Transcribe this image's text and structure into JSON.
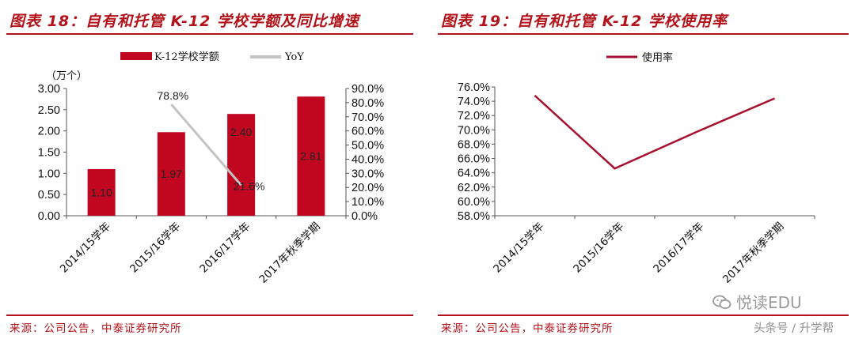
{
  "left": {
    "title": "图表 18：自有和托管 K-12 学校学额及同比增速",
    "source": "来源：公司公告，中泰证券研究所",
    "unit_label": "（万个）",
    "legend": {
      "bar": "K-12学校学额",
      "line": "YoY"
    }
  },
  "right": {
    "title": "图表 19：自有和托管 K-12 学校使用率",
    "source": "来源：公司公告，中泰证券研究所",
    "legend": {
      "line": "使用率"
    }
  },
  "watermark": {
    "brand": "悦读EDU",
    "sub": "头条号 / 升学帮"
  },
  "colors": {
    "accent": "#b3121a",
    "bar": "#c0071f",
    "yoy_line": "#c4c4c4",
    "usage_line": "#a8102e"
  },
  "chart_data": [
    {
      "type": "bar",
      "title": "图表 18：自有和托管 K-12 学校学额及同比增速",
      "categories": [
        "2014/15学年",
        "2015/16学年",
        "2016/17学年",
        "2017年秋季学期"
      ],
      "series": [
        {
          "name": "K-12学校学额",
          "type": "bar",
          "axis": "left",
          "values": [
            1.1,
            1.97,
            2.4,
            2.81
          ],
          "labels": [
            "1.10",
            "1.97",
            "2.40",
            "2.81"
          ]
        },
        {
          "name": "YoY",
          "type": "line",
          "axis": "right",
          "values": [
            null,
            78.8,
            21.6,
            null
          ],
          "labels": [
            "",
            "78.8%",
            "21.6%",
            ""
          ]
        }
      ],
      "ylim_left": [
        0,
        3
      ],
      "yticks_left": [
        "0.00",
        "0.50",
        "1.00",
        "1.50",
        "2.00",
        "2.50",
        "3.00"
      ],
      "ylim_right": [
        0,
        90
      ],
      "yticks_right": [
        "0.0%",
        "10.0%",
        "20.0%",
        "30.0%",
        "40.0%",
        "50.0%",
        "60.0%",
        "70.0%",
        "80.0%",
        "90.0%"
      ],
      "ylabel": "（万个）",
      "legend_position": "top",
      "grid": false
    },
    {
      "type": "line",
      "title": "图表 19：自有和托管 K-12 学校使用率",
      "categories": [
        "2014/15学年",
        "2015/16学年",
        "2016/17学年",
        "2017年秋季学期"
      ],
      "series": [
        {
          "name": "使用率",
          "values": [
            74.8,
            64.6,
            69.6,
            74.4
          ]
        }
      ],
      "ylim": [
        58,
        76
      ],
      "yticks": [
        "58.0%",
        "60.0%",
        "62.0%",
        "64.0%",
        "66.0%",
        "68.0%",
        "70.0%",
        "72.0%",
        "74.0%",
        "76.0%"
      ],
      "legend_position": "top",
      "grid": false
    }
  ]
}
